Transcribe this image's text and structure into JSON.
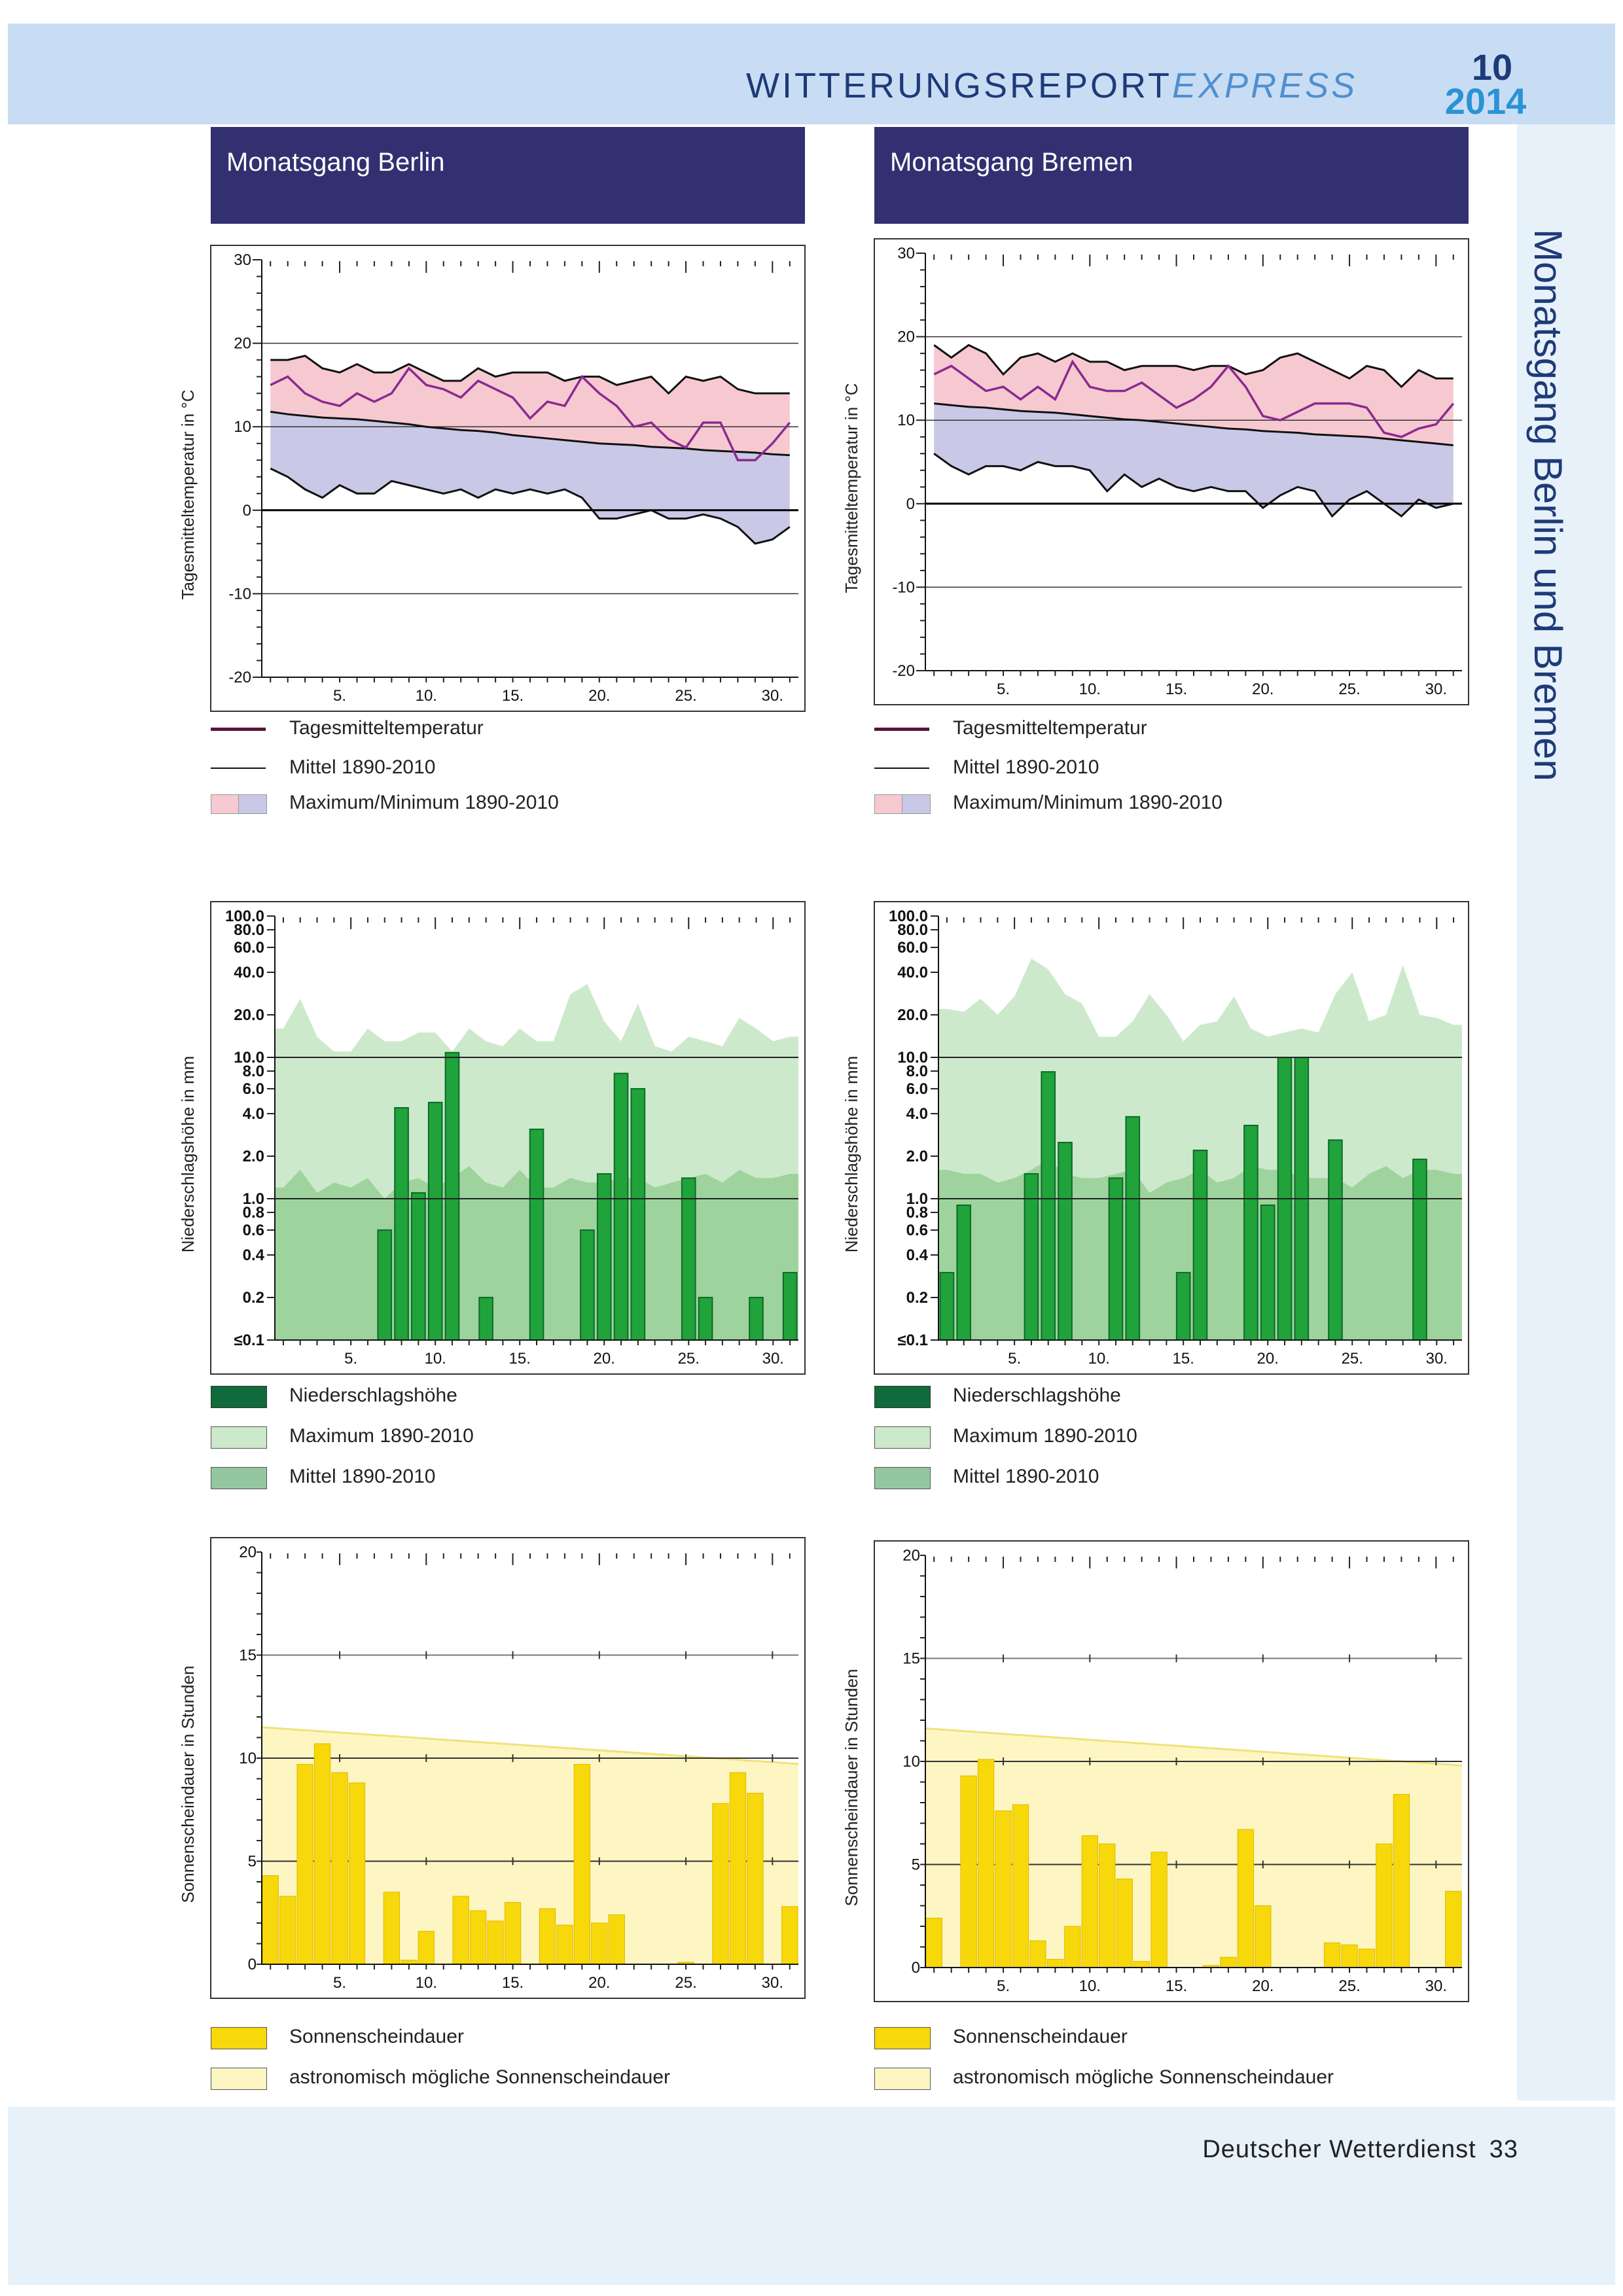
{
  "header": {
    "title_main": "WITTERUNGSREPORT",
    "title_express": "EXPRESS",
    "issue_number": "10",
    "issue_year": "2014"
  },
  "side_title": "Monatsgang Berlin und Bremen",
  "footer": {
    "publisher": "Deutscher Wetterdienst",
    "page": "33"
  },
  "panels": {
    "berlin": {
      "title": "Monatsgang Berlin"
    },
    "bremen": {
      "title": "Monatsgang Bremen"
    }
  },
  "legends": {
    "temperature": {
      "daily": "Tagesmitteltemperatur",
      "mean": "Mittel 1890-2010",
      "range": "Maximum/Minimum 1890-2010"
    },
    "precipitation": {
      "amount": "Niederschlagshöhe",
      "max": "Maximum 1890-2010",
      "mean": "Mittel 1890-2010"
    },
    "sunshine": {
      "duration": "Sonnenscheindauer",
      "possible": "astronomisch mögliche Sonnenscheindauer"
    }
  },
  "colors": {
    "header_bg": "#c8ddf3",
    "title_text": "#1e3a78",
    "title_express": "#4f8fd0",
    "issue_year": "#2a93d5",
    "panel_header": "#323070",
    "temp_line": "#8b2a8f",
    "temp_max_fill": "#f6c9d1",
    "temp_min_fill": "#c9c8e6",
    "precip_max_fill": "#cde9cc",
    "precip_mean_fill": "#9fd39d",
    "precip_bar": "#20a33a",
    "sun_bar": "#f7d80a",
    "sun_possible_fill": "#fdf6c3"
  },
  "chart_data": [
    {
      "id": "berlin_temp",
      "type": "line",
      "station": "Berlin",
      "ylabel": "Tagesmitteltemperatur in °C",
      "ylim": [
        -20,
        30
      ],
      "yticks": [
        30,
        20,
        10,
        0,
        -10,
        -20
      ],
      "xticklabels": [
        "5.",
        "10.",
        "15.",
        "20.",
        "25.",
        "30."
      ],
      "xticks": [
        5,
        10,
        15,
        20,
        25,
        30
      ],
      "x": [
        1,
        2,
        3,
        4,
        5,
        6,
        7,
        8,
        9,
        10,
        11,
        12,
        13,
        14,
        15,
        16,
        17,
        18,
        19,
        20,
        21,
        22,
        23,
        24,
        25,
        26,
        27,
        28,
        29,
        30,
        31
      ],
      "series": [
        {
          "name": "Tagesmitteltemperatur",
          "values": [
            15,
            16,
            14,
            13,
            12.5,
            14,
            13,
            14,
            17,
            15,
            14.5,
            13.5,
            15.5,
            14.5,
            13.5,
            11,
            13,
            12.5,
            16,
            14,
            12.5,
            10,
            10.5,
            8.5,
            7.5,
            10.5,
            10.5,
            6,
            6,
            8,
            10.5
          ]
        },
        {
          "name": "Mittel 1890-2010",
          "values": [
            11.8,
            11.5,
            11.3,
            11.1,
            11,
            10.9,
            10.7,
            10.5,
            10.3,
            10,
            9.8,
            9.6,
            9.5,
            9.3,
            9,
            8.8,
            8.6,
            8.4,
            8.2,
            8,
            7.9,
            7.8,
            7.6,
            7.5,
            7.4,
            7.2,
            7.1,
            7,
            6.9,
            6.7,
            6.6
          ]
        },
        {
          "name": "Maximum 1890-2010",
          "values": [
            18,
            18,
            18.5,
            17,
            16.5,
            17.5,
            16.5,
            16.5,
            17.5,
            16.5,
            15.5,
            15.5,
            17,
            16,
            16.5,
            16.5,
            16.5,
            15.5,
            16,
            16,
            15,
            15.5,
            16,
            14,
            16,
            15.5,
            16,
            14.5,
            14,
            14,
            14
          ]
        },
        {
          "name": "Minimum 1890-2010",
          "values": [
            5,
            4,
            2.5,
            1.5,
            3,
            2,
            2,
            3.5,
            3,
            2.5,
            2,
            2.5,
            1.5,
            2.5,
            2,
            2.5,
            2,
            2.5,
            1.5,
            -1,
            -1,
            -0.5,
            0,
            -1,
            -1,
            -0.5,
            -1,
            -2,
            -4,
            -3.5,
            -2
          ]
        }
      ]
    },
    {
      "id": "bremen_temp",
      "type": "line",
      "station": "Bremen",
      "ylabel": "Tagesmitteltemperatur in °C",
      "ylim": [
        -20,
        30
      ],
      "yticks": [
        30,
        20,
        10,
        0,
        -10,
        -20
      ],
      "xticklabels": [
        "5.",
        "10.",
        "15.",
        "20.",
        "25.",
        "30."
      ],
      "xticks": [
        5,
        10,
        15,
        20,
        25,
        30
      ],
      "x": [
        1,
        2,
        3,
        4,
        5,
        6,
        7,
        8,
        9,
        10,
        11,
        12,
        13,
        14,
        15,
        16,
        17,
        18,
        19,
        20,
        21,
        22,
        23,
        24,
        25,
        26,
        27,
        28,
        29,
        30,
        31
      ],
      "series": [
        {
          "name": "Tagesmitteltemperatur",
          "values": [
            15.5,
            16.5,
            15,
            13.5,
            14,
            12.5,
            14,
            12.5,
            17,
            14,
            13.5,
            13.5,
            14.5,
            13,
            11.5,
            12.5,
            14,
            16.5,
            14,
            10.5,
            10,
            11,
            12,
            12,
            12,
            11.5,
            8.5,
            8,
            9,
            9.5,
            12
          ]
        },
        {
          "name": "Mittel 1890-2010",
          "values": [
            12,
            11.8,
            11.6,
            11.5,
            11.3,
            11.1,
            11,
            10.9,
            10.7,
            10.5,
            10.3,
            10.1,
            10,
            9.8,
            9.6,
            9.4,
            9.2,
            9,
            8.9,
            8.7,
            8.6,
            8.5,
            8.3,
            8.2,
            8.1,
            8,
            7.8,
            7.6,
            7.4,
            7.2,
            7
          ]
        },
        {
          "name": "Maximum 1890-2010",
          "values": [
            19,
            17.5,
            19,
            18,
            15.5,
            17.5,
            18,
            17,
            18,
            17,
            17,
            16,
            16.5,
            16.5,
            16.5,
            16,
            16.5,
            16.5,
            15.5,
            16,
            17.5,
            18,
            17,
            16,
            15,
            16.5,
            16,
            14,
            16,
            15,
            15
          ]
        },
        {
          "name": "Minimum 1890-2010",
          "values": [
            6,
            4.5,
            3.5,
            4.5,
            4.5,
            4,
            5,
            4.5,
            4.5,
            4,
            1.5,
            3.5,
            2,
            3,
            2,
            1.5,
            2,
            1.5,
            1.5,
            -0.5,
            1,
            2,
            1.5,
            -1.5,
            0.5,
            1.5,
            0,
            -1.5,
            0.5,
            -0.5,
            0
          ]
        }
      ]
    },
    {
      "id": "berlin_precip",
      "type": "bar",
      "station": "Berlin",
      "yscale": "log",
      "ylabel": "Niederschlagshöhe in mm",
      "ylim": [
        0.1,
        100
      ],
      "yticklabels": [
        "100.0",
        "80.0",
        "60.0",
        "40.0",
        "20.0",
        "10.0",
        "8.0",
        "6.0",
        "4.0",
        "2.0",
        "1.0",
        "0.8",
        "0.6",
        "0.4",
        "0.2",
        "≤0.1"
      ],
      "yticks": [
        100,
        80,
        60,
        40,
        20,
        10,
        8,
        6,
        4,
        2,
        1,
        0.8,
        0.6,
        0.4,
        0.2,
        0.1
      ],
      "xticklabels": [
        "5.",
        "10.",
        "15.",
        "20.",
        "25.",
        "30."
      ],
      "xticks": [
        5,
        10,
        15,
        20,
        25,
        30
      ],
      "x": [
        1,
        2,
        3,
        4,
        5,
        6,
        7,
        8,
        9,
        10,
        11,
        12,
        13,
        14,
        15,
        16,
        17,
        18,
        19,
        20,
        21,
        22,
        23,
        24,
        25,
        26,
        27,
        28,
        29,
        30,
        31
      ],
      "series": [
        {
          "name": "Niederschlagshöhe",
          "values": [
            0,
            0,
            0,
            0,
            0,
            0,
            0.6,
            4.4,
            1.1,
            4.8,
            10.8,
            0,
            0.2,
            0,
            0,
            3.1,
            0,
            0,
            0.6,
            1.5,
            7.7,
            6,
            0,
            0,
            1.4,
            0.2,
            0,
            0,
            0.2,
            0,
            0.3
          ]
        },
        {
          "name": "Maximum 1890-2010",
          "values": [
            16,
            26,
            14,
            11,
            11,
            16,
            13,
            13,
            15,
            15,
            11,
            16,
            13,
            12,
            16,
            13,
            13,
            28,
            33,
            18,
            13,
            24,
            12,
            11,
            14,
            13,
            12,
            19,
            16,
            13,
            14
          ]
        },
        {
          "name": "Mittel 1890-2010",
          "values": [
            1.2,
            1.6,
            1.1,
            1.3,
            1.2,
            1.4,
            1,
            1.3,
            1.4,
            1.2,
            1.4,
            1.7,
            1.3,
            1.2,
            1.6,
            1.2,
            1.2,
            1.4,
            1.3,
            1.3,
            1.4,
            1.4,
            1.2,
            1.3,
            1.4,
            1.5,
            1.3,
            1.6,
            1.4,
            1.4,
            1.5
          ]
        }
      ]
    },
    {
      "id": "bremen_precip",
      "type": "bar",
      "station": "Bremen",
      "yscale": "log",
      "ylabel": "Niederschlagshöhe in mm",
      "ylim": [
        0.1,
        100
      ],
      "yticklabels": [
        "100.0",
        "80.0",
        "60.0",
        "40.0",
        "20.0",
        "10.0",
        "8.0",
        "6.0",
        "4.0",
        "2.0",
        "1.0",
        "0.8",
        "0.6",
        "0.4",
        "0.2",
        "≤0.1"
      ],
      "yticks": [
        100,
        80,
        60,
        40,
        20,
        10,
        8,
        6,
        4,
        2,
        1,
        0.8,
        0.6,
        0.4,
        0.2,
        0.1
      ],
      "xticklabels": [
        "5.",
        "10.",
        "15.",
        "20.",
        "25.",
        "30."
      ],
      "xticks": [
        5,
        10,
        15,
        20,
        25,
        30
      ],
      "x": [
        1,
        2,
        3,
        4,
        5,
        6,
        7,
        8,
        9,
        10,
        11,
        12,
        13,
        14,
        15,
        16,
        17,
        18,
        19,
        20,
        21,
        22,
        23,
        24,
        25,
        26,
        27,
        28,
        29,
        30,
        31
      ],
      "series": [
        {
          "name": "Niederschlagshöhe",
          "values": [
            0.3,
            0.9,
            0,
            0,
            0,
            1.5,
            7.9,
            2.5,
            0,
            0,
            1.4,
            3.8,
            0,
            0,
            0.3,
            2.2,
            0,
            0,
            3.3,
            0.9,
            10,
            10,
            0,
            2.6,
            0,
            0,
            0,
            0,
            1.9,
            0,
            0
          ]
        },
        {
          "name": "Maximum 1890-2010",
          "values": [
            22,
            21,
            26,
            20,
            27,
            50,
            42,
            28,
            24,
            14,
            14,
            18,
            28,
            20,
            13,
            17,
            18,
            27,
            16,
            14,
            15,
            16,
            15,
            28,
            40,
            18,
            20,
            45,
            20,
            19,
            17
          ]
        },
        {
          "name": "Mittel 1890-2010",
          "values": [
            1.6,
            1.5,
            1.5,
            1.3,
            1.4,
            1.6,
            1.9,
            1.5,
            1.4,
            1.4,
            1.5,
            1.6,
            1.1,
            1.3,
            1.4,
            1.6,
            1.3,
            1.4,
            1.7,
            1.6,
            1.6,
            1.4,
            1.4,
            1.4,
            1.2,
            1.5,
            1.7,
            1.4,
            1.6,
            1.6,
            1.5
          ]
        }
      ]
    },
    {
      "id": "berlin_sun",
      "type": "bar",
      "station": "Berlin",
      "ylabel": "Sonnenscheindauer in Stunden",
      "ylim": [
        0,
        20
      ],
      "yticks": [
        20,
        15,
        10,
        5,
        0
      ],
      "xticklabels": [
        "5.",
        "10.",
        "15.",
        "20.",
        "25.",
        "30."
      ],
      "xticks": [
        5,
        10,
        15,
        20,
        25,
        30
      ],
      "x": [
        1,
        2,
        3,
        4,
        5,
        6,
        7,
        8,
        9,
        10,
        11,
        12,
        13,
        14,
        15,
        16,
        17,
        18,
        19,
        20,
        21,
        22,
        23,
        24,
        25,
        26,
        27,
        28,
        29,
        30,
        31
      ],
      "series": [
        {
          "name": "Sonnenscheindauer",
          "values": [
            4.3,
            3.3,
            9.7,
            10.7,
            9.3,
            8.8,
            0,
            3.5,
            0.2,
            1.6,
            0,
            3.3,
            2.6,
            2.1,
            3,
            0,
            2.7,
            1.9,
            9.7,
            2,
            2.4,
            0,
            0,
            0,
            0.1,
            0,
            7.8,
            9.3,
            8.3,
            0,
            2.8
          ]
        },
        {
          "name": "astronomisch mögliche Sonnenscheindauer",
          "values": [
            11.5,
            11.45,
            11.4,
            11.34,
            11.28,
            11.22,
            11.16,
            11.1,
            11.04,
            10.98,
            10.92,
            10.86,
            10.8,
            10.74,
            10.68,
            10.62,
            10.56,
            10.5,
            10.44,
            10.38,
            10.32,
            10.26,
            10.2,
            10.14,
            10.08,
            10.02,
            9.96,
            9.9,
            9.84,
            9.78,
            9.72
          ]
        }
      ]
    },
    {
      "id": "bremen_sun",
      "type": "bar",
      "station": "Bremen",
      "ylabel": "Sonnenscheindauer in Stunden",
      "ylim": [
        0,
        20
      ],
      "yticks": [
        20,
        15,
        10,
        5,
        0
      ],
      "xticklabels": [
        "5.",
        "10.",
        "15.",
        "20.",
        "25.",
        "30."
      ],
      "xticks": [
        5,
        10,
        15,
        20,
        25,
        30
      ],
      "x": [
        1,
        2,
        3,
        4,
        5,
        6,
        7,
        8,
        9,
        10,
        11,
        12,
        13,
        14,
        15,
        16,
        17,
        18,
        19,
        20,
        21,
        22,
        23,
        24,
        25,
        26,
        27,
        28,
        29,
        30,
        31
      ],
      "series": [
        {
          "name": "Sonnenscheindauer",
          "values": [
            2.4,
            0,
            9.3,
            10.1,
            7.6,
            7.9,
            1.3,
            0.4,
            2,
            6.4,
            6,
            4.3,
            0.3,
            5.6,
            0,
            0,
            0.1,
            0.5,
            6.7,
            3,
            0,
            0,
            0,
            1.2,
            1.1,
            0.9,
            6,
            8.4,
            0,
            0,
            3.7
          ]
        },
        {
          "name": "astronomisch mögliche Sonnenscheindauer",
          "values": [
            11.6,
            11.54,
            11.48,
            11.42,
            11.36,
            11.3,
            11.24,
            11.18,
            11.12,
            11.06,
            11,
            10.94,
            10.88,
            10.82,
            10.76,
            10.7,
            10.64,
            10.58,
            10.52,
            10.46,
            10.4,
            10.34,
            10.28,
            10.22,
            10.16,
            10.1,
            10.04,
            9.98,
            9.92,
            9.86,
            9.8
          ]
        }
      ]
    }
  ]
}
